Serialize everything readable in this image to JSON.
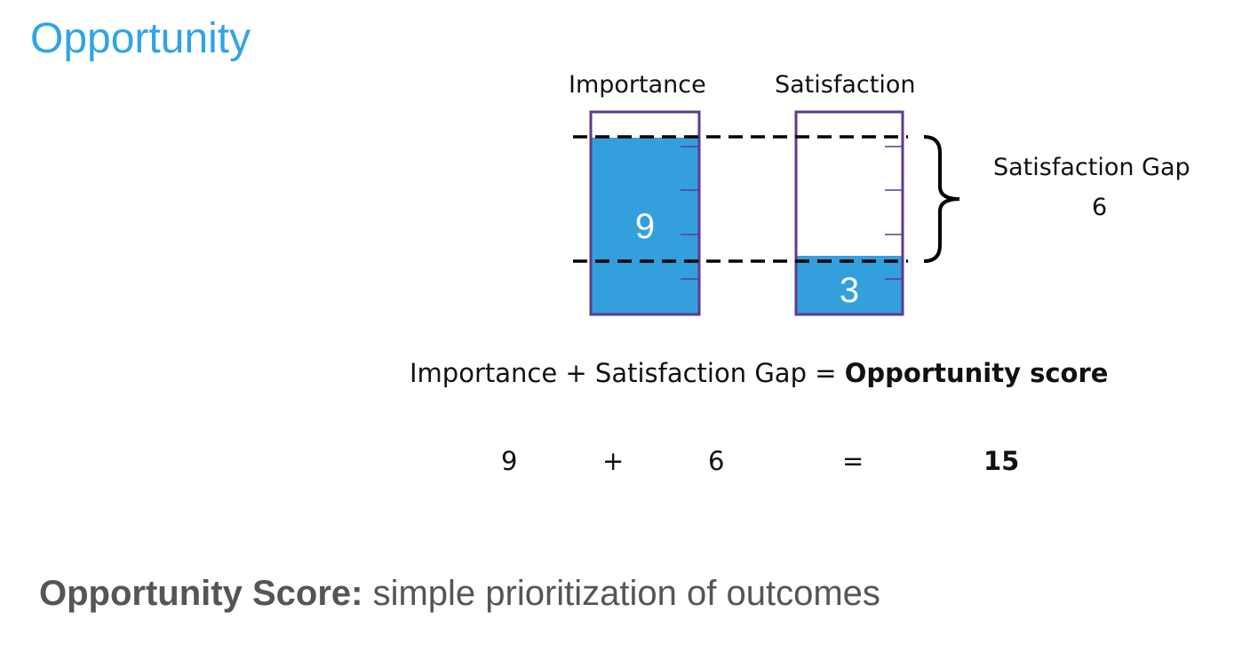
{
  "title": "Opportunity",
  "colors": {
    "title": "#2fa4e7",
    "fill": "#339fdd",
    "frame": "#5c3b8e",
    "text": "#111111",
    "footer": "#555555"
  },
  "diagram": {
    "importance": {
      "label": "Importance",
      "value": "9",
      "level": 0.9
    },
    "satisfaction": {
      "label": "Satisfaction",
      "value": "3",
      "level": 0.3
    },
    "gap": {
      "label": "Satisfaction Gap",
      "value": "6"
    }
  },
  "equation": {
    "text": "Importance + Satisfaction Gap = ",
    "result_label": "Opportunity score",
    "terms": [
      "9",
      "+",
      "6",
      "=",
      "15"
    ]
  },
  "footer": {
    "bold": "Opportunity Score:",
    "rest": " simple prioritization of outcomes"
  }
}
